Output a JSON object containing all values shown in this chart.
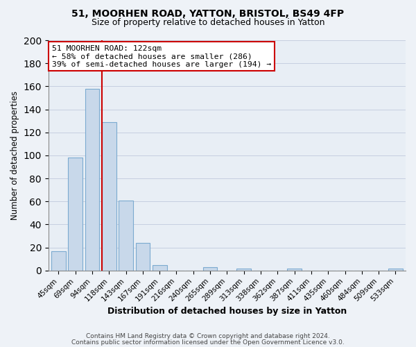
{
  "title": "51, MOORHEN ROAD, YATTON, BRISTOL, BS49 4FP",
  "subtitle": "Size of property relative to detached houses in Yatton",
  "xlabel": "Distribution of detached houses by size in Yatton",
  "ylabel": "Number of detached properties",
  "bar_labels": [
    "45sqm",
    "69sqm",
    "94sqm",
    "118sqm",
    "143sqm",
    "167sqm",
    "191sqm",
    "216sqm",
    "240sqm",
    "265sqm",
    "289sqm",
    "313sqm",
    "338sqm",
    "362sqm",
    "387sqm",
    "411sqm",
    "435sqm",
    "460sqm",
    "484sqm",
    "509sqm",
    "533sqm"
  ],
  "bar_values": [
    17,
    98,
    158,
    129,
    61,
    24,
    5,
    0,
    0,
    3,
    0,
    2,
    0,
    0,
    2,
    0,
    0,
    0,
    0,
    0,
    2
  ],
  "bar_color": "#c8d8ea",
  "bar_edge_color": "#7baad0",
  "ylim": [
    0,
    200
  ],
  "yticks": [
    0,
    20,
    40,
    60,
    80,
    100,
    120,
    140,
    160,
    180,
    200
  ],
  "property_line_color": "#cc0000",
  "property_line_bar_index": 3,
  "annotation_title": "51 MOORHEN ROAD: 122sqm",
  "annotation_line1": "← 58% of detached houses are smaller (286)",
  "annotation_line2": "39% of semi-detached houses are larger (194) →",
  "annotation_box_color": "#ffffff",
  "annotation_box_edge": "#cc0000",
  "footer_line1": "Contains HM Land Registry data © Crown copyright and database right 2024.",
  "footer_line2": "Contains public sector information licensed under the Open Government Licence v3.0.",
  "background_color": "#eef2f7",
  "plot_bg_color": "#e8eef5",
  "grid_color": "#c5cfe0"
}
